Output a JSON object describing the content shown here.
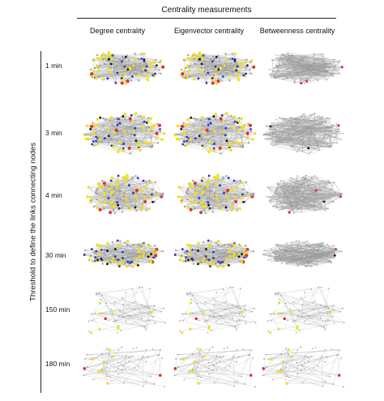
{
  "title": "Centrality measurements",
  "y_axis_label": "Threshold to define the links connecting nodes",
  "columns": [
    "Degree centrality",
    "Eigenvector centrality",
    "Betweenness centrality"
  ],
  "rows": [
    "1 min",
    "3 min",
    "4 min",
    "30 min",
    "150 min",
    "180 min"
  ],
  "colors": {
    "high": "#e03030",
    "mid": "#f2e018",
    "low": "#2a36c8",
    "base": "#9a9a9a",
    "dark": "#111111",
    "edge": "#9a9a9a"
  }
}
